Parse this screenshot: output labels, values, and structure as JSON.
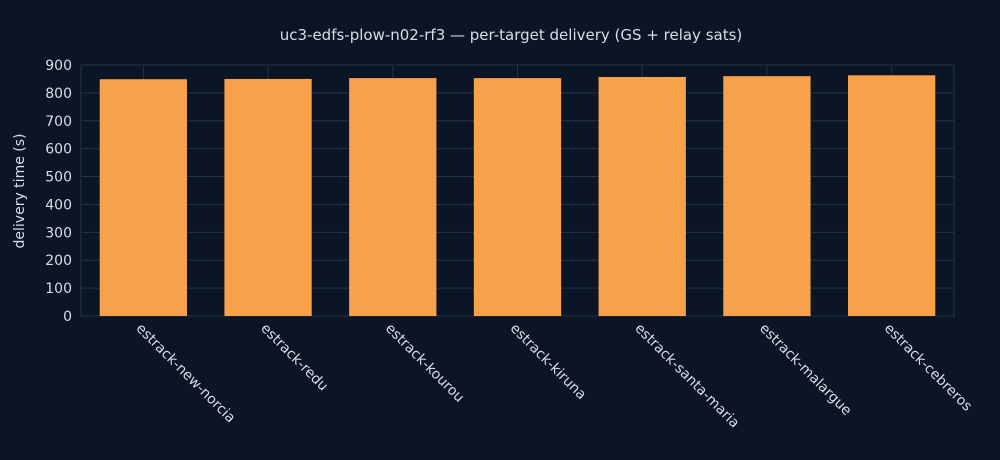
{
  "colors": {
    "background": "#0b1526",
    "bar": "#f8a14b",
    "text": "#d9dee6",
    "grid": "#24324a"
  },
  "chart_data": {
    "type": "bar",
    "title": "uc3-edfs-plow-n02-rf3 — per-target delivery (GS + relay sats)",
    "xlabel": "",
    "ylabel": "delivery time (s)",
    "ylim": [
      0,
      900
    ],
    "yticks": [
      0,
      100,
      200,
      300,
      400,
      500,
      600,
      700,
      800,
      900
    ],
    "grid": true,
    "categories": [
      "estrack-new-norcia",
      "estrack-redu",
      "estrack-kourou",
      "estrack-kiruna",
      "estrack-santa-maria",
      "estrack-malargue",
      "estrack-cebreros"
    ],
    "values": [
      849,
      850,
      853,
      853,
      857,
      860,
      863
    ]
  }
}
